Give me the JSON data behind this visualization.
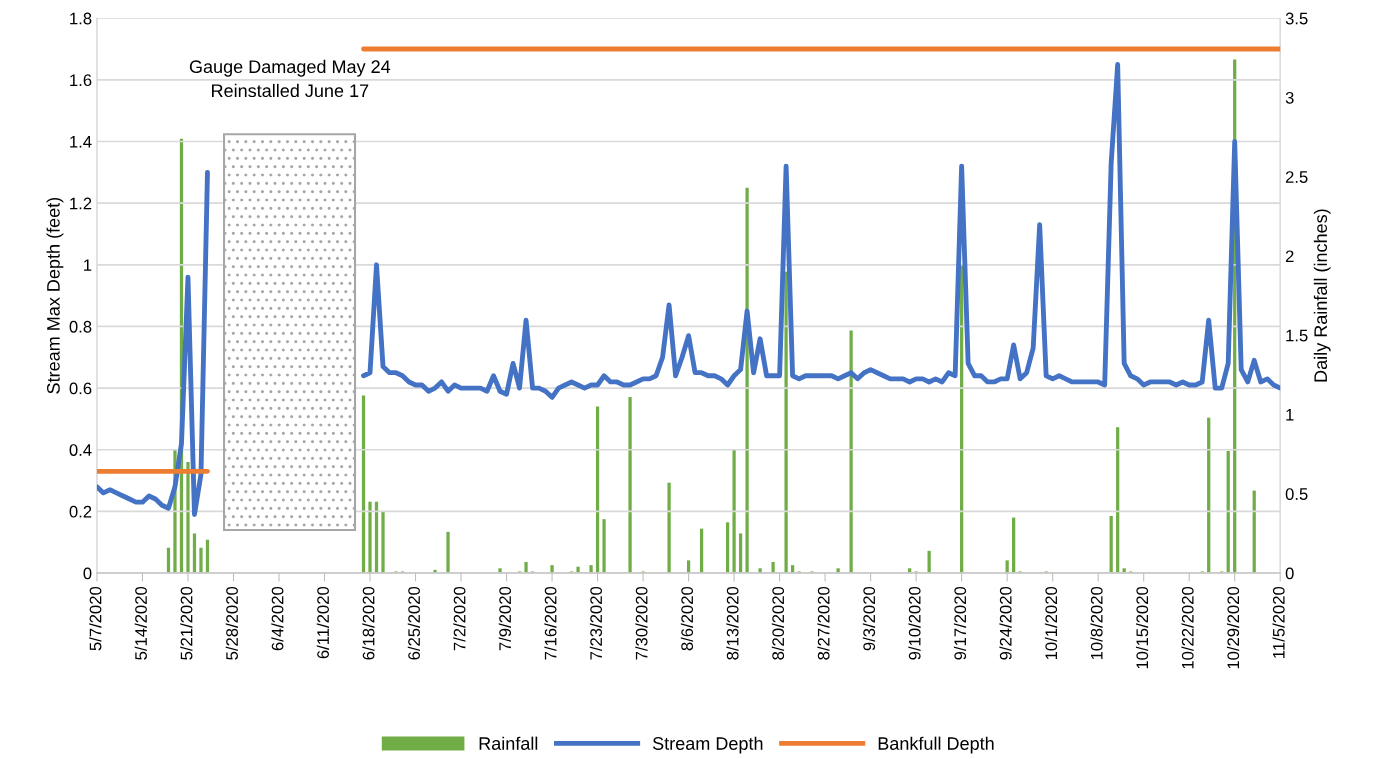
{
  "chart_data": {
    "type": "line",
    "xlabel": null,
    "ylabel": "Stream Max Depth (feet)",
    "y2label": "Daily Rainfall (inches)",
    "annotations": [
      "Gauge Damaged May 24\nReinstalled June 17"
    ],
    "series": [
      {
        "name": "Rainfall",
        "type": "bar",
        "axis": "y2",
        "color": "#70ad47",
        "x": [
          "2020-05-18",
          "2020-05-19",
          "2020-05-20",
          "2020-05-21",
          "2020-05-22",
          "2020-05-23",
          "2020-05-24",
          "2020-06-17",
          "2020-06-18",
          "2020-06-19",
          "2020-06-20",
          "2020-06-22",
          "2020-06-23",
          "2020-06-28",
          "2020-06-30",
          "2020-07-08",
          "2020-07-11",
          "2020-07-12",
          "2020-07-13",
          "2020-07-16",
          "2020-07-19",
          "2020-07-20",
          "2020-07-22",
          "2020-07-23",
          "2020-07-24",
          "2020-07-28",
          "2020-07-30",
          "2020-08-03",
          "2020-08-06",
          "2020-08-08",
          "2020-08-12",
          "2020-08-13",
          "2020-08-14",
          "2020-08-15",
          "2020-08-17",
          "2020-08-19",
          "2020-08-21",
          "2020-08-22",
          "2020-08-23",
          "2020-08-25",
          "2020-08-29",
          "2020-08-31",
          "2020-09-09",
          "2020-09-10",
          "2020-09-12",
          "2020-09-17",
          "2020-09-24",
          "2020-09-25",
          "2020-09-26",
          "2020-09-30",
          "2020-10-10",
          "2020-10-11",
          "2020-10-12",
          "2020-10-13",
          "2020-10-24",
          "2020-10-25",
          "2020-10-27",
          "2020-10-28",
          "2020-10-29",
          "2020-11-01"
        ],
        "values": [
          0.16,
          0.78,
          2.74,
          0.7,
          0.25,
          0.16,
          0.21,
          1.12,
          0.45,
          0.45,
          0.39,
          0.01,
          0.01,
          0.02,
          0.26,
          0.03,
          0.01,
          0.07,
          0.01,
          0.05,
          0.01,
          0.04,
          0.05,
          1.05,
          0.34,
          1.11,
          0.01,
          0.57,
          0.08,
          0.28,
          0.32,
          0.78,
          0.25,
          2.43,
          0.03,
          0.07,
          1.9,
          0.05,
          0.01,
          0.01,
          0.03,
          1.53,
          0.03,
          0.01,
          0.14,
          1.95,
          0.08,
          0.35,
          0.01,
          0.01,
          0.36,
          0.92,
          0.03,
          0.01,
          0.01,
          0.98,
          0.01,
          0.77,
          3.24,
          0.52
        ]
      },
      {
        "name": "Stream Depth",
        "color": "#4472c4",
        "x": [
          "2020-05-07",
          "2020-05-08",
          "2020-05-09",
          "2020-05-10",
          "2020-05-11",
          "2020-05-12",
          "2020-05-13",
          "2020-05-14",
          "2020-05-15",
          "2020-05-16",
          "2020-05-17",
          "2020-05-18",
          "2020-05-19",
          "2020-05-20",
          "2020-05-21",
          "2020-05-22",
          "2020-05-23",
          "2020-05-24",
          "2020-05-25",
          "2020-06-17",
          "2020-06-18",
          "2020-06-19",
          "2020-06-20",
          "2020-06-21",
          "2020-06-22",
          "2020-06-23",
          "2020-06-24",
          "2020-06-25",
          "2020-06-26",
          "2020-06-27",
          "2020-06-28",
          "2020-06-29",
          "2020-06-30",
          "2020-07-01",
          "2020-07-02",
          "2020-07-03",
          "2020-07-04",
          "2020-07-05",
          "2020-07-06",
          "2020-07-07",
          "2020-07-08",
          "2020-07-09",
          "2020-07-10",
          "2020-07-11",
          "2020-07-12",
          "2020-07-13",
          "2020-07-14",
          "2020-07-15",
          "2020-07-16",
          "2020-07-17",
          "2020-07-18",
          "2020-07-19",
          "2020-07-20",
          "2020-07-21",
          "2020-07-22",
          "2020-07-23",
          "2020-07-24",
          "2020-07-25",
          "2020-07-26",
          "2020-07-27",
          "2020-07-28",
          "2020-07-29",
          "2020-07-30",
          "2020-07-31",
          "2020-08-01",
          "2020-08-02",
          "2020-08-03",
          "2020-08-04",
          "2020-08-05",
          "2020-08-06",
          "2020-08-07",
          "2020-08-08",
          "2020-08-09",
          "2020-08-10",
          "2020-08-11",
          "2020-08-12",
          "2020-08-13",
          "2020-08-14",
          "2020-08-15",
          "2020-08-16",
          "2020-08-17",
          "2020-08-18",
          "2020-08-19",
          "2020-08-20",
          "2020-08-21",
          "2020-08-22",
          "2020-08-23",
          "2020-08-24",
          "2020-08-25",
          "2020-08-26",
          "2020-08-27",
          "2020-08-28",
          "2020-08-29",
          "2020-08-30",
          "2020-08-31",
          "2020-09-01",
          "2020-09-02",
          "2020-09-03",
          "2020-09-04",
          "2020-09-05",
          "2020-09-06",
          "2020-09-07",
          "2020-09-08",
          "2020-09-09",
          "2020-09-10",
          "2020-09-11",
          "2020-09-12",
          "2020-09-13",
          "2020-09-14",
          "2020-09-15",
          "2020-09-16",
          "2020-09-17",
          "2020-09-18",
          "2020-09-19",
          "2020-09-20",
          "2020-09-21",
          "2020-09-22",
          "2020-09-23",
          "2020-09-24",
          "2020-09-25",
          "2020-09-26",
          "2020-09-27",
          "2020-09-28",
          "2020-09-29",
          "2020-09-30",
          "2020-10-01",
          "2020-10-02",
          "2020-10-03",
          "2020-10-04",
          "2020-10-05",
          "2020-10-06",
          "2020-10-07",
          "2020-10-08",
          "2020-10-09",
          "2020-10-10",
          "2020-10-11",
          "2020-10-12",
          "2020-10-13",
          "2020-10-14",
          "2020-10-15",
          "2020-10-16",
          "2020-10-17",
          "2020-10-18",
          "2020-10-19",
          "2020-10-20",
          "2020-10-21",
          "2020-10-22",
          "2020-10-23",
          "2020-10-24",
          "2020-10-25",
          "2020-10-26",
          "2020-10-27",
          "2020-10-28",
          "2020-10-29",
          "2020-10-30",
          "2020-10-31",
          "2020-11-01",
          "2020-11-02",
          "2020-11-03",
          "2020-11-04",
          "2020-11-05"
        ],
        "values": [
          0.28,
          0.26,
          0.27,
          0.26,
          0.25,
          0.24,
          0.23,
          0.23,
          0.25,
          0.24,
          0.22,
          0.21,
          0.28,
          0.42,
          0.96,
          0.19,
          0.32,
          1.3,
          null,
          0.64,
          0.65,
          1.0,
          0.67,
          0.65,
          0.65,
          0.64,
          0.62,
          0.61,
          0.61,
          0.59,
          0.6,
          0.62,
          0.59,
          0.61,
          0.6,
          0.6,
          0.6,
          0.6,
          0.59,
          0.64,
          0.59,
          0.58,
          0.68,
          0.6,
          0.82,
          0.6,
          0.6,
          0.59,
          0.57,
          0.6,
          0.61,
          0.62,
          0.61,
          0.6,
          0.61,
          0.61,
          0.64,
          0.62,
          0.62,
          0.61,
          0.61,
          0.62,
          0.63,
          0.63,
          0.64,
          0.7,
          0.87,
          0.64,
          0.7,
          0.77,
          0.65,
          0.65,
          0.64,
          0.64,
          0.63,
          0.61,
          0.64,
          0.66,
          0.85,
          0.65,
          0.76,
          0.64,
          0.64,
          0.64,
          1.32,
          0.64,
          0.63,
          0.64,
          0.64,
          0.64,
          0.64,
          0.64,
          0.63,
          0.64,
          0.65,
          0.63,
          0.65,
          0.66,
          0.65,
          0.64,
          0.63,
          0.63,
          0.63,
          0.62,
          0.63,
          0.63,
          0.62,
          0.63,
          0.62,
          0.65,
          0.64,
          1.32,
          0.68,
          0.64,
          0.64,
          0.62,
          0.62,
          0.63,
          0.63,
          0.74,
          0.63,
          0.65,
          0.73,
          1.13,
          0.64,
          0.63,
          0.64,
          0.63,
          0.62,
          0.62,
          0.62,
          0.62,
          0.62,
          0.61,
          1.33,
          1.65,
          0.68,
          0.64,
          0.63,
          0.61,
          0.62,
          0.62,
          0.62,
          0.62,
          0.61,
          0.62,
          0.61,
          0.61,
          0.62,
          0.82,
          0.6,
          0.6,
          0.68,
          1.4,
          0.66,
          0.62,
          0.69,
          0.62,
          0.63,
          0.61,
          0.6
        ]
      },
      {
        "name": "Bankfull Depth",
        "color": "#ed7d31",
        "x": [
          "2020-05-07",
          "2020-05-24",
          "2020-06-01",
          "2020-06-17",
          "2020-11-05"
        ],
        "values": [
          0.33,
          0.33,
          null,
          1.7,
          1.7
        ]
      }
    ],
    "xlim": [
      "2020-05-07",
      "2020-11-05"
    ],
    "xticks": [
      {
        "value": "2020-05-07",
        "label": "5/7/2020"
      },
      {
        "value": "2020-05-14",
        "label": "5/14/2020"
      },
      {
        "value": "2020-05-21",
        "label": "5/21/2020"
      },
      {
        "value": "2020-05-28",
        "label": "5/28/2020"
      },
      {
        "value": "2020-06-04",
        "label": "6/4/2020"
      },
      {
        "value": "2020-06-11",
        "label": "6/11/2020"
      },
      {
        "value": "2020-06-18",
        "label": "6/18/2020"
      },
      {
        "value": "2020-06-25",
        "label": "6/25/2020"
      },
      {
        "value": "2020-07-02",
        "label": "7/2/2020"
      },
      {
        "value": "2020-07-09",
        "label": "7/9/2020"
      },
      {
        "value": "2020-07-16",
        "label": "7/16/2020"
      },
      {
        "value": "2020-07-23",
        "label": "7/23/2020"
      },
      {
        "value": "2020-07-30",
        "label": "7/30/2020"
      },
      {
        "value": "2020-08-06",
        "label": "8/6/2020"
      },
      {
        "value": "2020-08-13",
        "label": "8/13/2020"
      },
      {
        "value": "2020-08-20",
        "label": "8/20/2020"
      },
      {
        "value": "2020-08-27",
        "label": "8/27/2020"
      },
      {
        "value": "2020-09-03",
        "label": "9/3/2020"
      },
      {
        "value": "2020-09-10",
        "label": "9/10/2020"
      },
      {
        "value": "2020-09-17",
        "label": "9/17/2020"
      },
      {
        "value": "2020-09-24",
        "label": "9/24/2020"
      },
      {
        "value": "2020-10-01",
        "label": "10/1/2020"
      },
      {
        "value": "2020-10-08",
        "label": "10/8/2020"
      },
      {
        "value": "2020-10-15",
        "label": "10/15/2020"
      },
      {
        "value": "2020-10-22",
        "label": "10/22/2020"
      },
      {
        "value": "2020-10-29",
        "label": "10/29/2020"
      },
      {
        "value": "2020-11-05",
        "label": "11/5/2020"
      }
    ],
    "ylim": [
      0,
      1.8
    ],
    "yticks": [
      0,
      0.2,
      0.4,
      0.6,
      0.8,
      1,
      1.2,
      1.4,
      1.6,
      1.8
    ],
    "y2lim": [
      0,
      3.5
    ],
    "y2ticks": [
      0,
      0.5,
      1,
      1.5,
      2,
      2.5,
      3,
      3.5
    ],
    "grid": "y",
    "legend": "bottom"
  }
}
